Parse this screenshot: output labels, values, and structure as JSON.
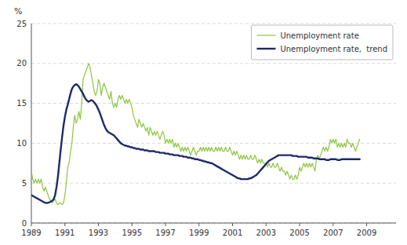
{
  "chart_data": {
    "type": "line",
    "y_label": "%",
    "xlim": [
      1989.0,
      2010.75
    ],
    "xticks": [
      1989,
      1991,
      1993,
      1995,
      1997,
      1999,
      2001,
      2003,
      2005,
      2007,
      2009
    ],
    "ylim": [
      0,
      25
    ],
    "yticks": [
      0,
      5,
      10,
      15,
      20,
      25
    ],
    "grid": "y",
    "legend": "upper right",
    "x": [
      1989.0,
      1989.0833333333,
      1989.1666666667,
      1989.25,
      1989.3333333333,
      1989.4166666667,
      1989.5,
      1989.5833333333,
      1989.6666666667,
      1989.75,
      1989.8333333333,
      1989.9166666667,
      1990.0,
      1990.0833333333,
      1990.1666666667,
      1990.25,
      1990.3333333333,
      1990.4166666667,
      1990.5,
      1990.5833333333,
      1990.6666666667,
      1990.75,
      1990.8333333333,
      1990.9166666667,
      1991.0,
      1991.0833333333,
      1991.1666666667,
      1991.25,
      1991.3333333333,
      1991.4166666667,
      1991.5,
      1991.5833333333,
      1991.6666666667,
      1991.75,
      1991.8333333333,
      1991.9166666667,
      1992.0,
      1992.0833333333,
      1992.1666666667,
      1992.25,
      1992.3333333333,
      1992.4166666667,
      1992.5,
      1992.5833333333,
      1992.6666666667,
      1992.75,
      1992.8333333333,
      1992.9166666667,
      1993.0,
      1993.0833333333,
      1993.1666666667,
      1993.25,
      1993.3333333333,
      1993.4166666667,
      1993.5,
      1993.5833333333,
      1993.6666666667,
      1993.75,
      1993.8333333333,
      1993.9166666667,
      1994.0,
      1994.0833333333,
      1994.1666666667,
      1994.25,
      1994.3333333333,
      1994.4166666667,
      1994.5,
      1994.5833333333,
      1994.6666666667,
      1994.75,
      1994.8333333333,
      1994.9166666667,
      1995.0,
      1995.0833333333,
      1995.1666666667,
      1995.25,
      1995.3333333333,
      1995.4166666667,
      1995.5,
      1995.5833333333,
      1995.6666666667,
      1995.75,
      1995.8333333333,
      1995.9166666667,
      1996.0,
      1996.0833333333,
      1996.1666666667,
      1996.25,
      1996.3333333333,
      1996.4166666667,
      1996.5,
      1996.5833333333,
      1996.6666666667,
      1996.75,
      1996.8333333333,
      1996.9166666667,
      1997.0,
      1997.0833333333,
      1997.1666666667,
      1997.25,
      1997.3333333333,
      1997.4166666667,
      1997.5,
      1997.5833333333,
      1997.6666666667,
      1997.75,
      1997.8333333333,
      1997.9166666667,
      1998.0,
      1998.0833333333,
      1998.1666666667,
      1998.25,
      1998.3333333333,
      1998.4166666667,
      1998.5,
      1998.5833333333,
      1998.6666666667,
      1998.75,
      1998.8333333333,
      1998.9166666667,
      1999.0,
      1999.0833333333,
      1999.1666666667,
      1999.25,
      1999.3333333333,
      1999.4166666667,
      1999.5,
      1999.5833333333,
      1999.6666666667,
      1999.75,
      1999.8333333333,
      1999.9166666667,
      2000.0,
      2000.0833333333,
      2000.1666666667,
      2000.25,
      2000.3333333333,
      2000.4166666667,
      2000.5,
      2000.5833333333,
      2000.6666666667,
      2000.75,
      2000.8333333333,
      2000.9166666667,
      2001.0,
      2001.0833333333,
      2001.1666666667,
      2001.25,
      2001.3333333333,
      2001.4166666667,
      2001.5,
      2001.5833333333,
      2001.6666666667,
      2001.75,
      2001.8333333333,
      2001.9166666667,
      2002.0,
      2002.0833333333,
      2002.1666666667,
      2002.25,
      2002.3333333333,
      2002.4166666667,
      2002.5,
      2002.5833333333,
      2002.6666666667,
      2002.75,
      2002.8333333333,
      2002.9166666667,
      2003.0,
      2003.0833333333,
      2003.1666666667,
      2003.25,
      2003.3333333333,
      2003.4166666667,
      2003.5,
      2003.5833333333,
      2003.6666666667,
      2003.75,
      2003.8333333333,
      2003.9166666667,
      2004.0,
      2004.0833333333,
      2004.1666666667,
      2004.25,
      2004.3333333333,
      2004.4166666667,
      2004.5,
      2004.5833333333,
      2004.6666666667,
      2004.75,
      2004.8333333333,
      2004.9166666667,
      2005.0,
      2005.0833333333,
      2005.1666666667,
      2005.25,
      2005.3333333333,
      2005.4166666667,
      2005.5,
      2005.5833333333,
      2005.6666666667,
      2005.75,
      2005.8333333333,
      2005.9166666667,
      2006.0,
      2006.0833333333,
      2006.1666666667,
      2006.25,
      2006.3333333333,
      2006.4166666667,
      2006.5,
      2006.5833333333,
      2006.6666666667,
      2006.75,
      2006.8333333333,
      2006.9166666667,
      2007.0,
      2007.0833333333,
      2007.1666666667,
      2007.25,
      2007.3333333333,
      2007.4166666667,
      2007.5,
      2007.5833333333,
      2007.6666666667,
      2007.75,
      2007.8333333333,
      2007.9166666667,
      2008.0,
      2008.0833333333,
      2008.1666666667,
      2008.25,
      2008.3333333333,
      2008.4166666667,
      2008.5,
      2008.5833333333
    ],
    "series": [
      {
        "name": "Unemployment rate",
        "color": "#8dc63f",
        "values": [
          6.5,
          5.5,
          5.0,
          5.5,
          5.0,
          5.5,
          5.0,
          5.5,
          4.5,
          4.0,
          4.5,
          4.0,
          3.5,
          3.0,
          2.8,
          2.5,
          2.8,
          3.0,
          2.5,
          2.3,
          2.5,
          2.5,
          2.3,
          2.5,
          3.5,
          5.0,
          7.0,
          7.5,
          9.0,
          10.0,
          12.0,
          13.5,
          12.5,
          13.0,
          14.0,
          13.0,
          15.0,
          18.0,
          18.5,
          19.0,
          19.5,
          20.0,
          19.5,
          18.5,
          17.5,
          16.5,
          16.0,
          16.5,
          18.0,
          17.5,
          16.0,
          17.0,
          17.5,
          17.0,
          16.5,
          16.0,
          15.5,
          16.5,
          15.0,
          14.5,
          15.0,
          14.5,
          15.5,
          16.0,
          15.5,
          16.0,
          15.5,
          15.0,
          15.5,
          15.0,
          15.5,
          15.0,
          14.5,
          13.5,
          13.0,
          12.5,
          12.0,
          13.0,
          12.5,
          12.0,
          12.5,
          12.0,
          11.5,
          12.0,
          11.0,
          12.0,
          11.5,
          11.0,
          11.5,
          11.0,
          11.5,
          11.0,
          10.5,
          11.0,
          11.5,
          11.0,
          10.0,
          10.5,
          10.0,
          10.5,
          10.0,
          10.5,
          9.5,
          10.0,
          9.5,
          10.0,
          9.5,
          9.0,
          9.5,
          9.0,
          9.5,
          9.0,
          9.5,
          9.0,
          8.5,
          9.0,
          9.5,
          9.0,
          8.5,
          9.0,
          9.0,
          9.5,
          9.0,
          9.5,
          9.0,
          9.5,
          9.0,
          9.5,
          9.0,
          9.5,
          9.0,
          9.0,
          9.5,
          9.0,
          9.5,
          9.0,
          9.5,
          9.0,
          9.0,
          9.5,
          9.0,
          9.0,
          9.5,
          9.0,
          8.5,
          9.0,
          8.5,
          9.0,
          8.5,
          8.0,
          8.5,
          8.0,
          8.5,
          8.0,
          8.5,
          8.0,
          8.0,
          8.5,
          8.0,
          8.0,
          8.5,
          8.0,
          7.5,
          8.0,
          7.5,
          8.0,
          7.5,
          7.5,
          7.5,
          7.0,
          7.5,
          7.0,
          7.0,
          7.5,
          7.0,
          7.0,
          7.5,
          7.0,
          6.5,
          7.0,
          6.5,
          6.5,
          6.0,
          6.5,
          6.0,
          5.5,
          6.0,
          5.5,
          5.5,
          6.0,
          5.5,
          6.0,
          7.0,
          6.5,
          7.0,
          7.5,
          7.0,
          7.5,
          7.0,
          7.5,
          7.0,
          7.5,
          7.0,
          6.5,
          8.0,
          8.5,
          8.0,
          8.5,
          9.0,
          9.5,
          9.0,
          9.5,
          9.0,
          9.5,
          10.5,
          10.0,
          10.5,
          10.0,
          10.5,
          9.5,
          10.0,
          9.5,
          10.0,
          9.5,
          10.0,
          9.5,
          10.5,
          10.0,
          10.0,
          9.5,
          10.0,
          9.5,
          9.0,
          9.5,
          10.0,
          10.5
        ]
      },
      {
        "name": "Unemployment rate,  trend",
        "color": "#1b2a6b",
        "values": [
          3.5,
          3.4,
          3.3,
          3.2,
          3.1,
          3.0,
          2.9,
          2.8,
          2.7,
          2.6,
          2.55,
          2.5,
          2.55,
          2.6,
          2.7,
          2.8,
          3.0,
          3.5,
          4.5,
          5.8,
          7.5,
          9.2,
          10.8,
          12.2,
          13.3,
          14.2,
          14.8,
          15.5,
          16.2,
          16.8,
          17.1,
          17.3,
          17.4,
          17.3,
          17.1,
          16.8,
          16.5,
          16.2,
          15.8,
          15.5,
          15.3,
          15.2,
          15.3,
          15.4,
          15.3,
          15.1,
          14.9,
          14.6,
          14.2,
          13.8,
          13.3,
          12.8,
          12.3,
          11.9,
          11.6,
          11.4,
          11.3,
          11.2,
          11.1,
          11.0,
          10.8,
          10.6,
          10.4,
          10.2,
          10.0,
          9.9,
          9.8,
          9.7,
          9.7,
          9.6,
          9.6,
          9.5,
          9.5,
          9.4,
          9.4,
          9.3,
          9.3,
          9.3,
          9.2,
          9.2,
          9.2,
          9.1,
          9.1,
          9.1,
          9.0,
          9.0,
          9.0,
          9.0,
          9.0,
          8.9,
          8.9,
          8.9,
          8.8,
          8.8,
          8.8,
          8.8,
          8.7,
          8.7,
          8.7,
          8.6,
          8.6,
          8.6,
          8.5,
          8.5,
          8.5,
          8.5,
          8.4,
          8.4,
          8.4,
          8.3,
          8.3,
          8.3,
          8.2,
          8.2,
          8.2,
          8.1,
          8.1,
          8.0,
          8.0,
          8.0,
          7.9,
          7.9,
          7.8,
          7.8,
          7.7,
          7.7,
          7.6,
          7.6,
          7.5,
          7.5,
          7.4,
          7.3,
          7.2,
          7.1,
          7.0,
          6.9,
          6.8,
          6.7,
          6.6,
          6.5,
          6.4,
          6.3,
          6.2,
          6.1,
          6.0,
          5.9,
          5.8,
          5.7,
          5.6,
          5.6,
          5.5,
          5.5,
          5.5,
          5.5,
          5.5,
          5.5,
          5.6,
          5.6,
          5.7,
          5.8,
          5.9,
          6.0,
          6.2,
          6.4,
          6.6,
          6.8,
          7.0,
          7.2,
          7.4,
          7.6,
          7.8,
          7.9,
          8.0,
          8.1,
          8.2,
          8.3,
          8.4,
          8.5,
          8.5,
          8.5,
          8.5,
          8.5,
          8.5,
          8.5,
          8.5,
          8.5,
          8.5,
          8.4,
          8.4,
          8.4,
          8.4,
          8.3,
          8.3,
          8.3,
          8.3,
          8.3,
          8.3,
          8.3,
          8.2,
          8.2,
          8.2,
          8.2,
          8.1,
          8.1,
          8.1,
          8.1,
          8.0,
          8.0,
          8.0,
          8.0,
          8.0,
          7.9,
          7.9,
          7.9,
          8.0,
          8.0,
          8.0,
          8.0,
          8.0,
          7.9,
          7.9,
          7.9,
          8.0,
          8.0,
          8.0,
          8.0,
          8.0,
          8.0,
          8.0,
          8.0,
          8.0,
          8.0,
          8.0,
          8.0,
          8.0,
          8.0
        ]
      }
    ]
  }
}
